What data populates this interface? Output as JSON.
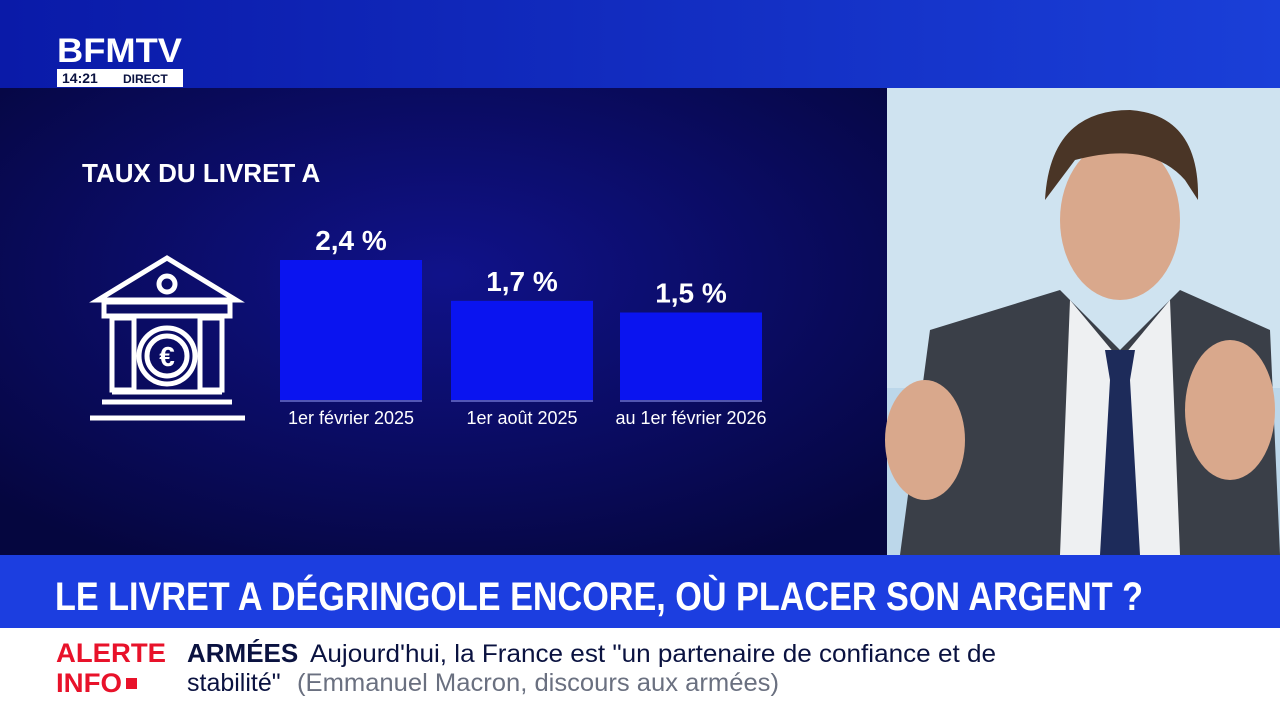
{
  "header": {
    "logo": "BFMTV",
    "time": "14:21",
    "status": "DIRECT"
  },
  "chart_data": {
    "type": "bar",
    "title": "TAUX DU LIVRET A",
    "categories": [
      "1er février 2025",
      "1er août 2025",
      "au 1er février 2026"
    ],
    "values": [
      2.4,
      1.7,
      1.5
    ],
    "value_labels": [
      "2,4 %",
      "1,7 %",
      "1,5 %"
    ],
    "color": "#0a14f0"
  },
  "headline": "LE LIVRET A DÉGRINGOLE ENCORE, OÙ PLACER SON ARGENT ?",
  "ticker": {
    "tag": [
      "ALERTE",
      "INFO"
    ],
    "topic": "ARMÉES",
    "line1": "Aujourd'hui, la France est \"un partenaire de confiance et de",
    "line2": "stabilité\"",
    "source": "(Emmanuel Macron, discours aux armées)"
  }
}
